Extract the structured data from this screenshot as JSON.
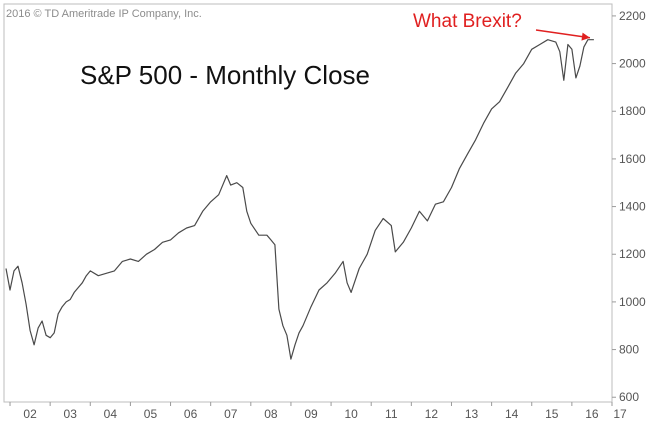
{
  "copyright": "2016 © TD Ameritrade IP Company, Inc.",
  "annotation": {
    "text": "What Brexit?",
    "color": "#e02020"
  },
  "colors": {
    "line": "#4a4a4a",
    "axis": "#9a9a9a",
    "plot_border": "#bdbdbd",
    "background": "#ffffff"
  },
  "chart_data": {
    "type": "line",
    "title": "S&P 500 - Monthly Close",
    "xlabel": "",
    "ylabel": "",
    "xlim": [
      2001.85,
      2017.0
    ],
    "ylim": [
      580,
      2250
    ],
    "x_ticks": [
      2002,
      2003,
      2004,
      2005,
      2006,
      2007,
      2008,
      2009,
      2010,
      2011,
      2012,
      2013,
      2014,
      2015,
      2016,
      2017
    ],
    "x_tick_labels": [
      "02",
      "03",
      "04",
      "05",
      "06",
      "07",
      "08",
      "09",
      "10",
      "11",
      "12",
      "13",
      "14",
      "15",
      "16",
      "17"
    ],
    "y_ticks": [
      600,
      800,
      1000,
      1200,
      1400,
      1600,
      1800,
      2000,
      2200
    ],
    "y_tick_labels": [
      "600",
      "800",
      "1000",
      "1200",
      "1400",
      "1600",
      "1800",
      "2000",
      "2200"
    ],
    "grid": false,
    "y_axis_position": "right",
    "series": [
      {
        "x": [
          2001.9,
          2002.0,
          2002.1,
          2002.2,
          2002.3,
          2002.4,
          2002.5,
          2002.6,
          2002.7,
          2002.8,
          2002.9,
          2003.0,
          2003.1,
          2003.2,
          2003.3,
          2003.4,
          2003.5,
          2003.6,
          2003.7,
          2003.8,
          2003.9,
          2004.0,
          2004.2,
          2004.4,
          2004.6,
          2004.8,
          2005.0,
          2005.2,
          2005.4,
          2005.6,
          2005.8,
          2006.0,
          2006.2,
          2006.4,
          2006.6,
          2006.8,
          2007.0,
          2007.2,
          2007.4,
          2007.5,
          2007.65,
          2007.8,
          2007.9,
          2008.0,
          2008.2,
          2008.4,
          2008.5,
          2008.6,
          2008.7,
          2008.8,
          2008.9,
          2009.0,
          2009.1,
          2009.2,
          2009.3,
          2009.5,
          2009.7,
          2009.9,
          2010.1,
          2010.3,
          2010.4,
          2010.5,
          2010.7,
          2010.9,
          2011.1,
          2011.3,
          2011.5,
          2011.6,
          2011.8,
          2012.0,
          2012.2,
          2012.4,
          2012.6,
          2012.8,
          2013.0,
          2013.2,
          2013.4,
          2013.6,
          2013.8,
          2014.0,
          2014.2,
          2014.4,
          2014.6,
          2014.8,
          2015.0,
          2015.2,
          2015.4,
          2015.6,
          2015.7,
          2015.8,
          2015.9,
          2016.0,
          2016.1,
          2016.2,
          2016.3,
          2016.4,
          2016.55
        ],
        "values": [
          1140,
          1050,
          1130,
          1150,
          1080,
          990,
          880,
          820,
          890,
          920,
          860,
          850,
          870,
          950,
          980,
          1000,
          1010,
          1040,
          1060,
          1080,
          1110,
          1130,
          1110,
          1120,
          1130,
          1170,
          1180,
          1170,
          1200,
          1220,
          1250,
          1260,
          1290,
          1310,
          1320,
          1380,
          1420,
          1450,
          1530,
          1490,
          1500,
          1480,
          1380,
          1330,
          1280,
          1280,
          1260,
          1240,
          970,
          900,
          860,
          760,
          820,
          870,
          900,
          980,
          1050,
          1080,
          1120,
          1170,
          1080,
          1040,
          1140,
          1200,
          1300,
          1350,
          1320,
          1210,
          1250,
          1310,
          1380,
          1340,
          1410,
          1420,
          1480,
          1560,
          1620,
          1680,
          1750,
          1810,
          1840,
          1900,
          1960,
          2000,
          2060,
          2080,
          2100,
          2090,
          2050,
          1930,
          2080,
          2060,
          1940,
          1990,
          2070,
          2100,
          2100
        ]
      }
    ]
  }
}
